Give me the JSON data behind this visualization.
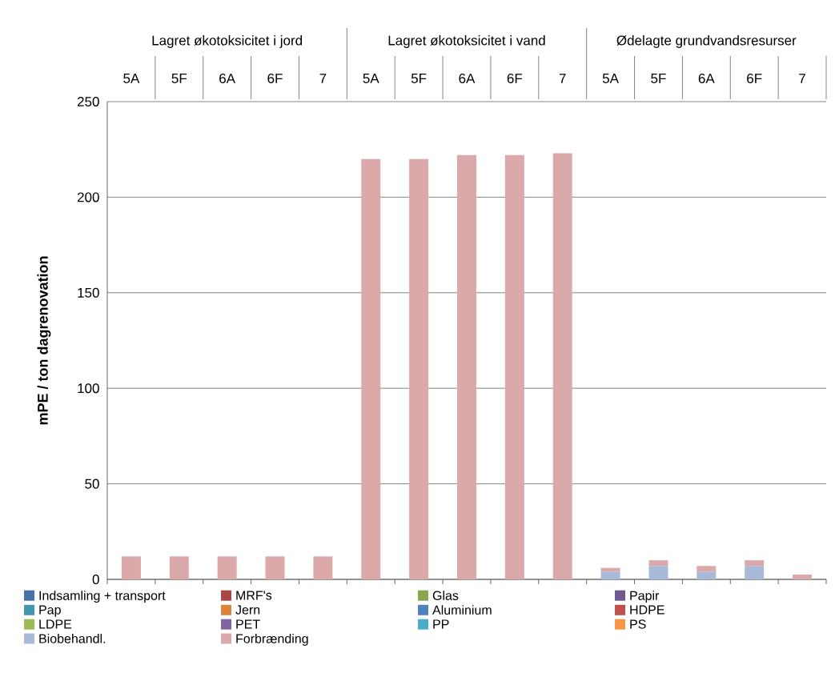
{
  "chart_data": {
    "type": "bar",
    "stacked": true,
    "ylabel": "mPE / ton dagrenovation",
    "annotations": [
      "Lagret økotoksicitet i jord",
      "Lagret økotoksicitet i vand",
      "Ødelagte grundvandsresurser"
    ],
    "categories": [
      "5A",
      "5F",
      "6A",
      "6F",
      "7",
      "5A",
      "5F",
      "6A",
      "6F",
      "7",
      "5A",
      "5F",
      "6A",
      "6F",
      "7"
    ],
    "ylim": [
      0,
      250
    ],
    "yticks": [
      0,
      50,
      100,
      150,
      200,
      250
    ],
    "grid": "y",
    "legend": "bottom",
    "series": [
      {
        "name": "Indsamling + transport",
        "color": "#4572a7",
        "values": [
          0,
          0,
          0,
          0,
          0,
          0,
          0,
          0,
          0,
          0,
          0,
          0,
          0,
          0,
          0
        ]
      },
      {
        "name": "MRF's",
        "color": "#aa4643",
        "values": [
          0,
          0,
          0,
          0,
          0,
          0,
          0,
          0,
          0,
          0,
          0,
          0,
          0,
          0,
          0
        ]
      },
      {
        "name": "Glas",
        "color": "#89a54e",
        "values": [
          0,
          0,
          0,
          0,
          0,
          0,
          0,
          0,
          0,
          0,
          0,
          0,
          0,
          0,
          0
        ]
      },
      {
        "name": "Papir",
        "color": "#71588f",
        "values": [
          0,
          0,
          0,
          0,
          0,
          0,
          0,
          0,
          0,
          0,
          0,
          0,
          0,
          0,
          0
        ]
      },
      {
        "name": "Pap",
        "color": "#4198af",
        "values": [
          0,
          0,
          0,
          0,
          0,
          0,
          0,
          0,
          0,
          0,
          0,
          0,
          0,
          0,
          0
        ]
      },
      {
        "name": "Jern",
        "color": "#db843d",
        "values": [
          0,
          0,
          0,
          0,
          0,
          0,
          0,
          0,
          0,
          0,
          0,
          0,
          0,
          0,
          0
        ]
      },
      {
        "name": "Aluminium",
        "color": "#4f81bd",
        "values": [
          0,
          0,
          0,
          0,
          0,
          0,
          0,
          0,
          0,
          0,
          0,
          0,
          0,
          0,
          0
        ]
      },
      {
        "name": "HDPE",
        "color": "#c0504d",
        "values": [
          0,
          0,
          0,
          0,
          0,
          0,
          0,
          0,
          0,
          0,
          0,
          0,
          0,
          0,
          0
        ]
      },
      {
        "name": "LDPE",
        "color": "#9bbb59",
        "values": [
          0,
          0,
          0,
          0,
          0,
          0,
          0,
          0,
          0,
          0,
          0,
          0,
          0,
          0,
          0
        ]
      },
      {
        "name": "PET",
        "color": "#8064a2",
        "values": [
          0,
          0,
          0,
          0,
          0,
          0,
          0,
          0,
          0,
          0,
          0,
          0,
          0,
          0,
          0
        ]
      },
      {
        "name": "PP",
        "color": "#4bacc6",
        "values": [
          0,
          0,
          0,
          0,
          0,
          0,
          0,
          0,
          0,
          0,
          0,
          0,
          0,
          0,
          0
        ]
      },
      {
        "name": "PS",
        "color": "#f79646",
        "values": [
          0,
          0,
          0,
          0,
          0,
          0,
          0,
          0,
          0,
          0,
          0,
          0,
          0,
          0,
          0
        ]
      },
      {
        "name": "Biobehandl.",
        "color": "#a9b9d8",
        "values": [
          0,
          0,
          0,
          0,
          0,
          0,
          0,
          0,
          0,
          0,
          4,
          7,
          4,
          7,
          0
        ]
      },
      {
        "name": "Forbrænding",
        "color": "#dba9aa",
        "values": [
          12,
          12,
          12,
          12,
          12,
          220,
          220,
          222,
          222,
          223,
          2,
          3,
          3,
          3,
          2.5
        ]
      }
    ]
  }
}
